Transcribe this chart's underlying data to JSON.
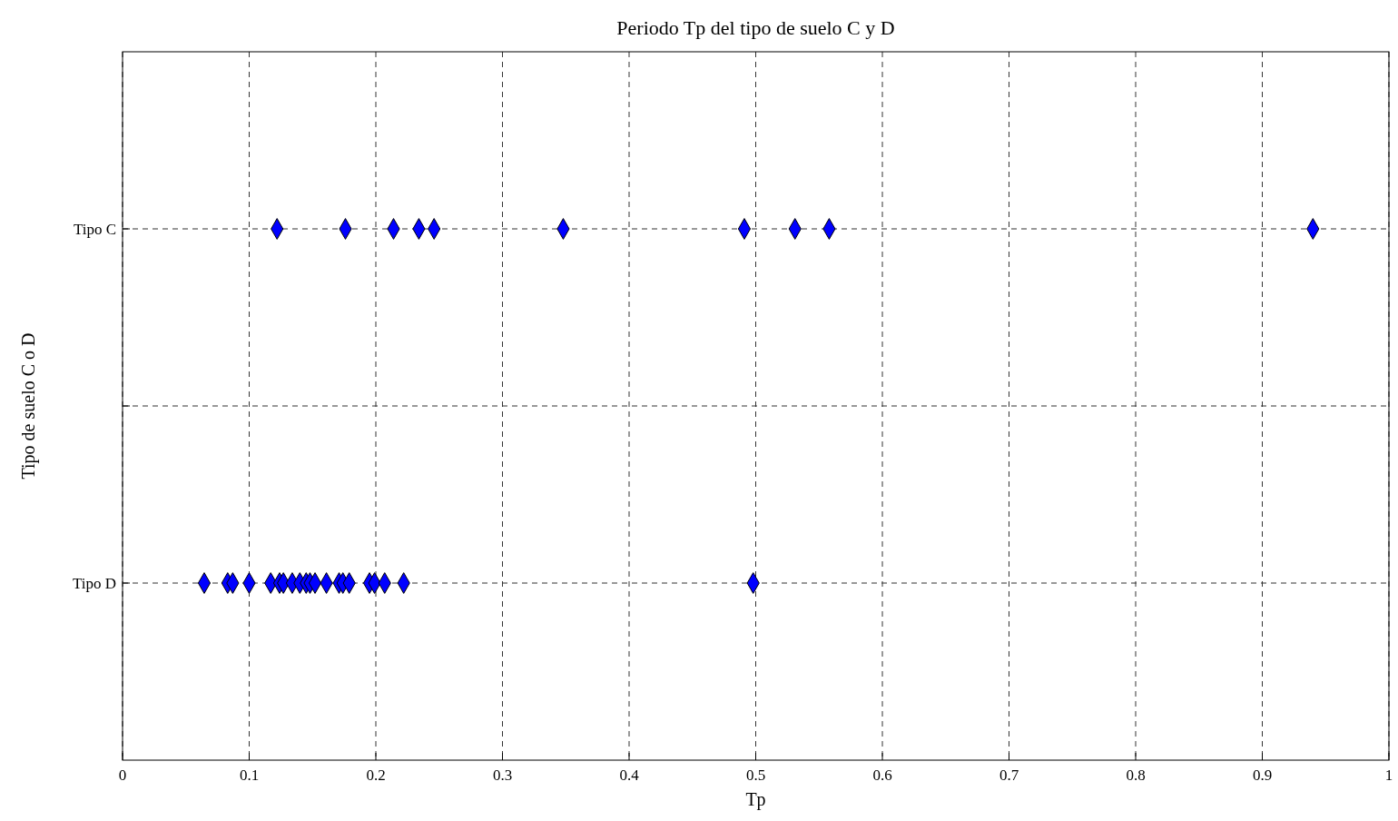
{
  "chart_data": {
    "type": "scatter",
    "orientation": "horizontal",
    "title": "Periodo Tp del tipo de suelo C y D",
    "xlabel": "Tp",
    "ylabel": "Tipo de suelo C o D",
    "categories": [
      "Tipo C",
      null,
      "Tipo D"
    ],
    "xlim": [
      0,
      1
    ],
    "xticks": [
      0,
      0.1,
      0.2,
      0.3,
      0.4,
      0.5,
      0.6,
      0.7,
      0.8,
      0.9,
      1
    ],
    "grid": true,
    "marker": "diamond",
    "series": [
      {
        "color": "#0000ff",
        "x": [
          "Tipo C",
          "Tipo C",
          "Tipo C",
          "Tipo C",
          "Tipo C",
          "Tipo C",
          "Tipo C",
          "Tipo C",
          "Tipo C",
          "Tipo C"
        ],
        "values": [
          0.122,
          0.176,
          0.214,
          0.234,
          0.246,
          0.348,
          0.491,
          0.531,
          0.558,
          0.94
        ]
      },
      {
        "color": "#0000ff",
        "x": [
          "Tipo D",
          "Tipo D",
          "Tipo D",
          "Tipo D",
          "Tipo D",
          "Tipo D",
          "Tipo D",
          "Tipo D",
          "Tipo D",
          "Tipo D",
          "Tipo D",
          "Tipo D",
          "Tipo D",
          "Tipo D",
          "Tipo D",
          "Tipo D",
          "Tipo D",
          "Tipo D",
          "Tipo D",
          "Tipo D",
          "Tipo D"
        ],
        "values": [
          0.0645,
          0.083,
          0.087,
          0.1,
          0.117,
          0.124,
          0.127,
          0.134,
          0.14,
          0.145,
          0.148,
          0.152,
          0.161,
          0.171,
          0.174,
          0.179,
          0.195,
          0.199,
          0.207,
          0.222,
          0.498
        ]
      }
    ]
  }
}
